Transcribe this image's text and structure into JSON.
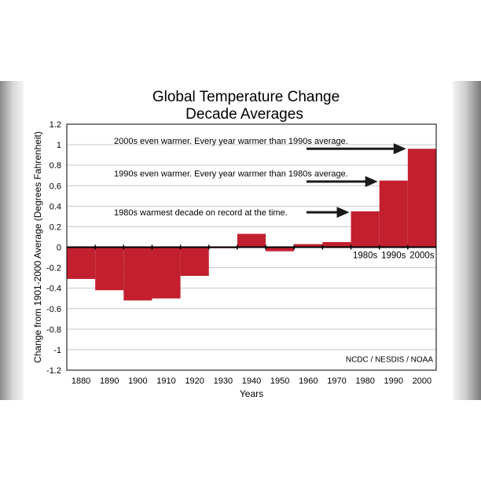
{
  "colors": {
    "bar": "#c2202f",
    "grid": "#c8c8c8",
    "axis": "#000000",
    "annotation_arrow": "#1a1a1a"
  },
  "chart_data": {
    "type": "bar",
    "title_line1": "Global Temperature Change",
    "title_line2": "Decade Averages",
    "xlabel": "Years",
    "ylabel": "Change from 1901-2000 Average (Degrees Fahrenheit)",
    "xlim": [
      1875,
      2005
    ],
    "ylim": [
      -1.2,
      1.2
    ],
    "grid": true,
    "yticks": [
      "1.2",
      "1",
      "0.8",
      "0.6",
      "0.4",
      "0.2",
      "0",
      "-0.2",
      "-0.4",
      "-0.6",
      "-0.8",
      "-1",
      "-1.2"
    ],
    "ytick_values": [
      1.2,
      1,
      0.8,
      0.6,
      0.4,
      0.2,
      0,
      -0.2,
      -0.4,
      -0.6,
      -0.8,
      -1,
      -1.2
    ],
    "xticks": [
      "1880",
      "1890",
      "1900",
      "1910",
      "1920",
      "1930",
      "1940",
      "1950",
      "1960",
      "1970",
      "1980",
      "1990",
      "2000"
    ],
    "xtick_values": [
      1880,
      1890,
      1900,
      1910,
      1920,
      1930,
      1940,
      1950,
      1960,
      1970,
      1980,
      1990,
      2000
    ],
    "bars": [
      {
        "x": 1880,
        "value": -0.31
      },
      {
        "x": 1890,
        "value": -0.42
      },
      {
        "x": 1900,
        "value": -0.52
      },
      {
        "x": 1910,
        "value": -0.5
      },
      {
        "x": 1920,
        "value": -0.28
      },
      {
        "x": 1930,
        "value": -0.01
      },
      {
        "x": 1940,
        "value": 0.13
      },
      {
        "x": 1950,
        "value": -0.04
      },
      {
        "x": 1960,
        "value": 0.03
      },
      {
        "x": 1970,
        "value": 0.05
      },
      {
        "x": 1980,
        "value": 0.35,
        "label": "1980s"
      },
      {
        "x": 1990,
        "value": 0.65,
        "label": "1990s"
      },
      {
        "x": 2000,
        "value": 0.96,
        "label": "2000s"
      }
    ],
    "annotations": [
      {
        "text": "2000s even warmer. Every year warmer than 1990s average.",
        "y": 1.04,
        "arrow_y": 0.96,
        "arrow_to_x": 1995
      },
      {
        "text": "1990s even warmer. Every year warmer than 1980s average.",
        "y": 0.72,
        "arrow_y": 0.64,
        "arrow_to_x": 1985
      },
      {
        "text": "1980s warmest decade on record at the time.",
        "y": 0.34,
        "arrow_y": 0.34,
        "arrow_to_x": 1975
      }
    ],
    "credit": "NCDC / NESDIS / NOAA"
  }
}
